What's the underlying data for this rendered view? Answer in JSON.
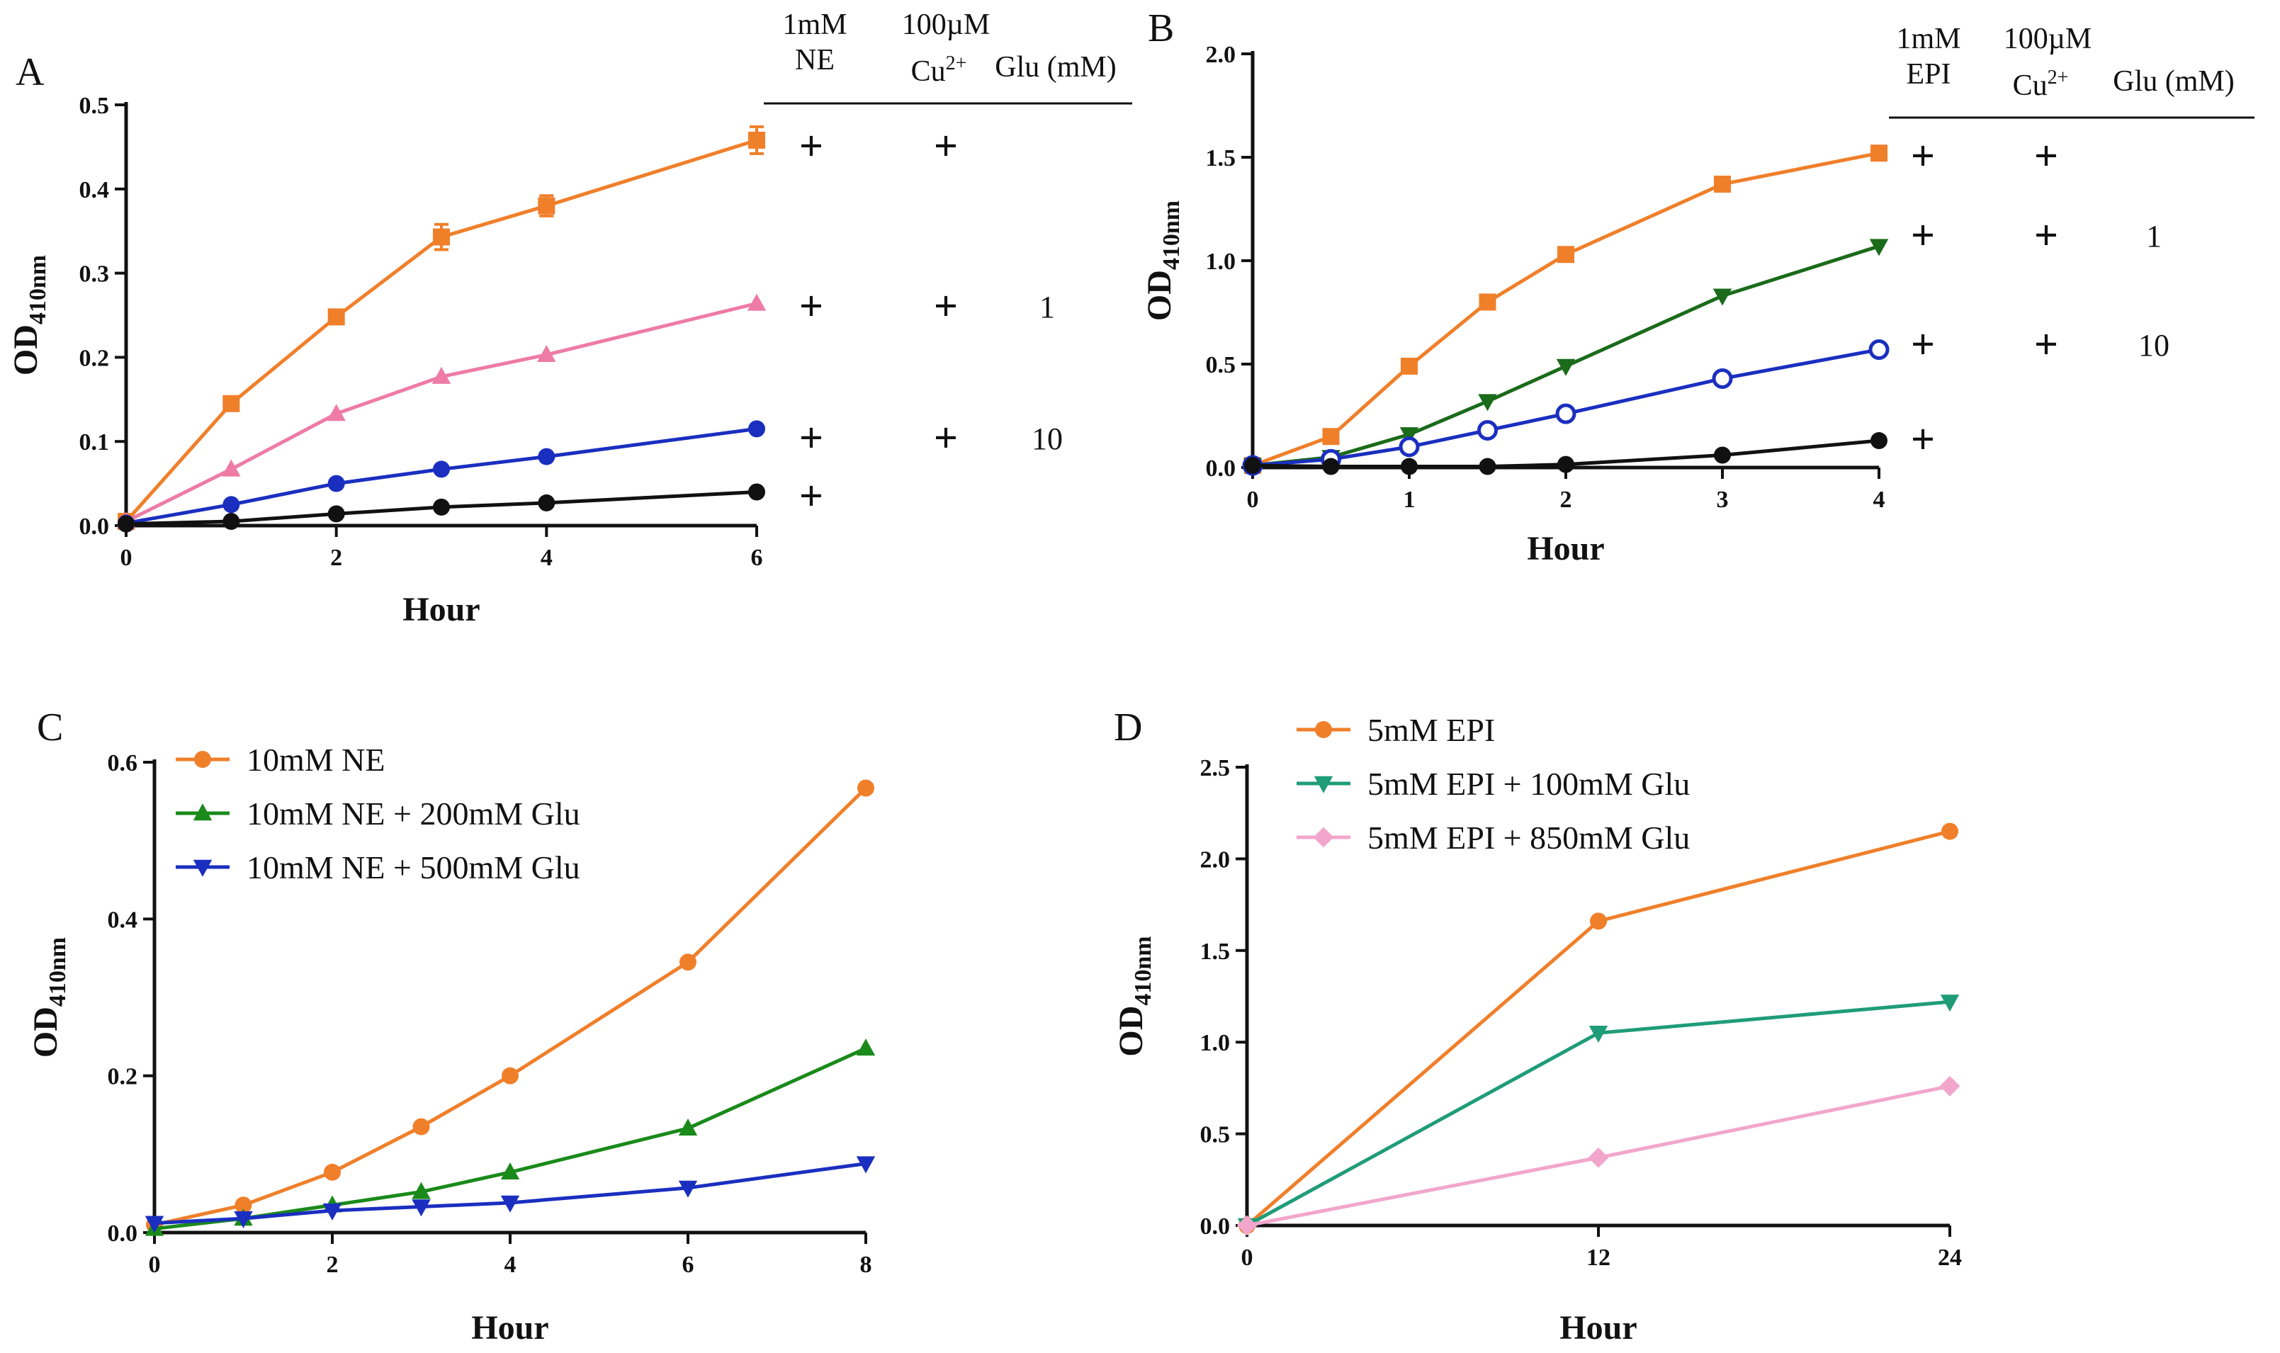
{
  "figure": {
    "panels": [
      "A",
      "B",
      "C",
      "D"
    ],
    "tables": {
      "A": {
        "headers": {
          "comp1": [
            "1mM",
            "NE"
          ],
          "comp2_top": "100µM",
          "comp2_bottom": "Cu",
          "comp2_sup": "2+",
          "glu": "Glu (mM)"
        },
        "rows": [
          {
            "comp1": "+",
            "comp2": "+",
            "glu": ""
          },
          {
            "comp1": "+",
            "comp2": "+",
            "glu": "1"
          },
          {
            "comp1": "+",
            "comp2": "+",
            "glu": "10"
          },
          {
            "comp1": "+",
            "comp2": "",
            "glu": ""
          }
        ]
      },
      "B": {
        "headers": {
          "comp1": [
            "1mM",
            "EPI"
          ],
          "comp2_top": "100µM",
          "comp2_bottom": "Cu",
          "comp2_sup": "2+",
          "glu": "Glu (mM)"
        },
        "rows": [
          {
            "comp1": "+",
            "comp2": "+",
            "glu": ""
          },
          {
            "comp1": "+",
            "comp2": "+",
            "glu": "1"
          },
          {
            "comp1": "+",
            "comp2": "+",
            "glu": "10"
          },
          {
            "comp1": "+",
            "comp2": "",
            "glu": ""
          }
        ]
      }
    }
  },
  "chart_data": [
    {
      "panel": "A",
      "type": "line",
      "xlabel": "Hour",
      "ylabel": "OD",
      "ylabel_sub": "410nm",
      "xlim": [
        0,
        6
      ],
      "ylim": [
        0,
        0.5
      ],
      "xticks": [
        0,
        2,
        4,
        6
      ],
      "xtick_labels": [
        "0",
        "2",
        "4",
        "6"
      ],
      "yticks": [
        0,
        0.1,
        0.2,
        0.3,
        0.4,
        0.5
      ],
      "ytick_labels": [
        "0.0",
        "0.1",
        "0.2",
        "0.3",
        "0.4",
        "0.5"
      ],
      "series": [
        {
          "name": "1mM NE + 100µM Cu2+",
          "color": "#f07f2a",
          "marker": "square",
          "x": [
            0,
            1,
            2,
            3,
            4,
            6
          ],
          "values": [
            0.005,
            0.145,
            0.248,
            0.343,
            0.38,
            0.458
          ],
          "errors": [
            0,
            0,
            0,
            0.015,
            0.012,
            0.016
          ]
        },
        {
          "name": "1mM NE + 100µM Cu2+ + 1mM Glu",
          "color": "#ee7ba4",
          "marker": "triangle-up",
          "x": [
            0,
            1,
            2,
            3,
            4,
            6
          ],
          "values": [
            0.005,
            0.067,
            0.133,
            0.177,
            0.203,
            0.264
          ]
        },
        {
          "name": "1mM NE + 100µM Cu2+ + 10mM Glu",
          "color": "#1a2fbf",
          "marker": "circle",
          "x": [
            0,
            1,
            2,
            3,
            4,
            6
          ],
          "values": [
            0.003,
            0.025,
            0.05,
            0.067,
            0.082,
            0.115
          ]
        },
        {
          "name": "1mM NE",
          "color": "#111111",
          "marker": "circle",
          "x": [
            0,
            1,
            2,
            3,
            4,
            6
          ],
          "values": [
            0.002,
            0.005,
            0.014,
            0.022,
            0.027,
            0.04
          ]
        }
      ]
    },
    {
      "panel": "B",
      "type": "line",
      "xlabel": "Hour",
      "ylabel": "OD",
      "ylabel_sub": "410nm",
      "xlim": [
        0,
        4
      ],
      "ylim": [
        0,
        2.0
      ],
      "xticks": [
        0,
        1,
        2,
        3,
        4
      ],
      "xtick_labels": [
        "0",
        "1",
        "2",
        "3",
        "4"
      ],
      "yticks": [
        0,
        0.5,
        1.0,
        1.5,
        2.0
      ],
      "ytick_labels": [
        "0.0",
        "0.5",
        "1.0",
        "1.5",
        "2.0"
      ],
      "series": [
        {
          "name": "1mM EPI + 100µM Cu2+",
          "color": "#f07f2a",
          "marker": "square",
          "x": [
            0,
            0.5,
            1,
            1.5,
            2,
            3,
            4
          ],
          "values": [
            0.01,
            0.15,
            0.49,
            0.8,
            1.03,
            1.37,
            1.52
          ]
        },
        {
          "name": "1mM EPI + 100µM Cu2+ + 1mM Glu",
          "color": "#1a6b1a",
          "marker": "triangle-down",
          "x": [
            0,
            0.5,
            1,
            1.5,
            2,
            3,
            4
          ],
          "values": [
            0.01,
            0.05,
            0.16,
            0.32,
            0.49,
            0.83,
            1.07
          ]
        },
        {
          "name": "1mM EPI + 100µM Cu2+ + 10mM Glu",
          "color": "#1a2fbf",
          "marker": "open-circle",
          "x": [
            0,
            0.5,
            1,
            1.5,
            2,
            3,
            4
          ],
          "values": [
            0.01,
            0.04,
            0.1,
            0.18,
            0.26,
            0.43,
            0.57
          ]
        },
        {
          "name": "1mM EPI",
          "color": "#111111",
          "marker": "circle",
          "x": [
            0,
            0.5,
            1,
            1.5,
            2,
            3,
            4
          ],
          "values": [
            0.01,
            0.005,
            0.005,
            0.005,
            0.015,
            0.06,
            0.13
          ]
        }
      ]
    },
    {
      "panel": "C",
      "type": "line",
      "xlabel": "Hour",
      "ylabel": "OD",
      "ylabel_sub": "410nm",
      "xlim": [
        0,
        8
      ],
      "ylim": [
        0,
        0.6
      ],
      "xticks": [
        0,
        2,
        4,
        6,
        8
      ],
      "xtick_labels": [
        "0",
        "2",
        "4",
        "6",
        "8"
      ],
      "yticks": [
        0,
        0.2,
        0.4,
        0.6
      ],
      "ytick_labels": [
        "0.0",
        "0.2",
        "0.4",
        "0.6"
      ],
      "legend": "top-left",
      "series": [
        {
          "name": "10mM NE",
          "color": "#f07f2a",
          "marker": "circle",
          "x": [
            0,
            1,
            2,
            3,
            4,
            6,
            8
          ],
          "values": [
            0.01,
            0.035,
            0.077,
            0.135,
            0.2,
            0.345,
            0.567
          ]
        },
        {
          "name": "10mM NE + 200mM Glu",
          "color": "#1a8a1a",
          "marker": "triangle-up",
          "x": [
            0,
            1,
            2,
            3,
            4,
            6,
            8
          ],
          "values": [
            0.005,
            0.018,
            0.035,
            0.052,
            0.077,
            0.133,
            0.235
          ]
        },
        {
          "name": "10mM NE + 500mM Glu",
          "color": "#1a2fbf",
          "marker": "triangle-down",
          "x": [
            0,
            1,
            2,
            3,
            4,
            6,
            8
          ],
          "values": [
            0.012,
            0.018,
            0.028,
            0.033,
            0.038,
            0.057,
            0.088
          ]
        }
      ]
    },
    {
      "panel": "D",
      "type": "line",
      "xlabel": "Hour",
      "ylabel": "OD",
      "ylabel_sub": "410nm",
      "xlim": [
        0,
        24
      ],
      "ylim": [
        0,
        2.5
      ],
      "xticks": [
        0,
        12,
        24
      ],
      "xtick_labels": [
        "0",
        "12",
        "24"
      ],
      "yticks": [
        0,
        0.5,
        1.0,
        1.5,
        2.0,
        2.5
      ],
      "ytick_labels": [
        "0.0",
        "0.5",
        "1.0",
        "1.5",
        "2.0",
        "2.5"
      ],
      "legend": "top-left",
      "series": [
        {
          "name": "5mM EPI",
          "color": "#f07f2a",
          "marker": "circle",
          "x": [
            0,
            12,
            24
          ],
          "values": [
            0.0,
            1.66,
            2.15
          ]
        },
        {
          "name": "5mM EPI + 100mM Glu",
          "color": "#1f9c78",
          "marker": "triangle-down",
          "x": [
            0,
            12,
            24
          ],
          "values": [
            0.0,
            1.05,
            1.22
          ]
        },
        {
          "name": "5mM EPI + 850mM Glu",
          "color": "#f2a6cc",
          "marker": "diamond",
          "x": [
            0,
            12,
            24
          ],
          "values": [
            0.0,
            0.37,
            0.76
          ]
        }
      ]
    }
  ]
}
